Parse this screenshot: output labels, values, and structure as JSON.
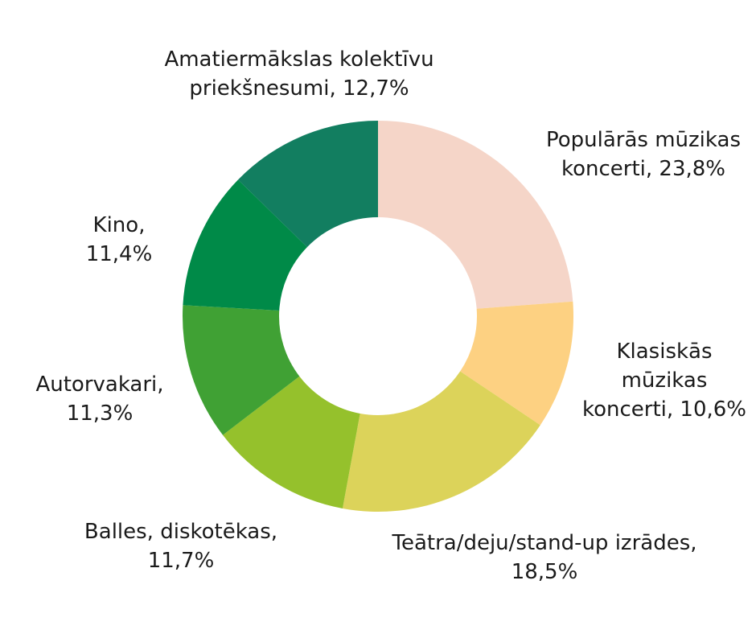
{
  "chart_data": {
    "type": "pie",
    "donut": true,
    "title": "",
    "start": "top",
    "direction": "clockwise",
    "legend": "none",
    "slices": [
      {
        "label_lines": [
          "Populārās mūzikas",
          "koncerti, 23,8%"
        ],
        "value": 23.8,
        "color": "#f5d5c8"
      },
      {
        "label_lines": [
          "Klasiskās",
          "mūzikas",
          "koncerti, 10,6%"
        ],
        "value": 10.6,
        "color": "#fdd182"
      },
      {
        "label_lines": [
          "Teātra/deju/stand-up izrādes,",
          "18,5%"
        ],
        "value": 18.5,
        "color": "#dcd35a"
      },
      {
        "label_lines": [
          "Balles, diskotēkas,",
          "11,7%"
        ],
        "value": 11.7,
        "color": "#95c12c"
      },
      {
        "label_lines": [
          "Autorvakari,",
          "11,3%"
        ],
        "value": 11.3,
        "color": "#40a134"
      },
      {
        "label_lines": [
          "Kino,",
          "11,4%"
        ],
        "value": 11.4,
        "color": "#008a48"
      },
      {
        "label_lines": [
          "Amatiermākslas kolektīvu",
          "priekšnesumi, 12,7%"
        ],
        "value": 12.7,
        "color": "#127e60"
      }
    ]
  }
}
